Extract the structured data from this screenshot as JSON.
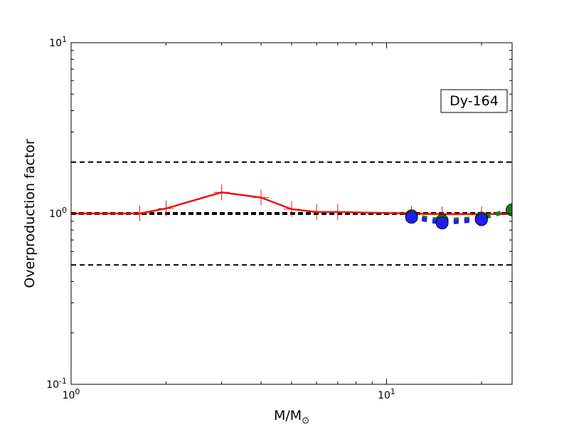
{
  "chart_data": {
    "type": "line",
    "xscale": "log",
    "yscale": "log",
    "xlim": [
      1,
      25
    ],
    "ylim": [
      0.1,
      10
    ],
    "xlabel": "M/M",
    "xlabel_sub": "⊙",
    "ylabel": "Overproduction factor",
    "annotation": "Dy-164",
    "x_ticks": [
      {
        "value": 1,
        "base": "10",
        "exp": "0"
      },
      {
        "value": 10,
        "base": "10",
        "exp": "1"
      }
    ],
    "y_ticks": [
      {
        "value": 0.1,
        "base": "10",
        "exp": "-1"
      },
      {
        "value": 1,
        "base": "10",
        "exp": "0"
      },
      {
        "value": 10,
        "base": "10",
        "exp": "1"
      }
    ],
    "reference_lines": [
      {
        "y": 2,
        "style": "dashed",
        "weight": "thin"
      },
      {
        "y": 1,
        "style": "dashed",
        "weight": "thick"
      },
      {
        "y": 0.5,
        "style": "dashed",
        "weight": "thin"
      }
    ],
    "series": [
      {
        "color": "#e8140f",
        "style": "solid",
        "marker": "plus",
        "x": [
          1.0,
          1.65,
          2.0,
          3.0,
          4.0,
          5.0,
          6.0,
          7.0,
          12.0,
          15.0,
          20.0,
          25.0
        ],
        "y": [
          1.0,
          1.0,
          1.07,
          1.33,
          1.24,
          1.06,
          1.02,
          1.02,
          1.0,
          0.99,
          0.99,
          1.0
        ]
      },
      {
        "color": "#1a7a1a",
        "style": "dashed",
        "marker": "circle",
        "x": [
          12.0,
          15.0,
          20.0,
          25.0
        ],
        "y": [
          0.97,
          0.91,
          0.94,
          1.05
        ]
      },
      {
        "color": "#1f1ff0",
        "style": "dashed",
        "marker": "circle",
        "x": [
          12.0,
          15.0,
          20.0
        ],
        "y": [
          0.95,
          0.88,
          0.92
        ]
      }
    ]
  }
}
